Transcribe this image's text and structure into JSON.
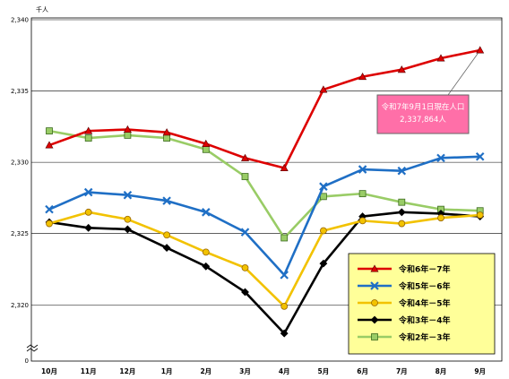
{
  "chart_data": {
    "type": "line",
    "unit_label": "千人",
    "categories": [
      "10月",
      "11月",
      "12月",
      "1月",
      "2月",
      "3月",
      "4月",
      "5月",
      "6月",
      "7月",
      "8月",
      "9月"
    ],
    "ylim": [
      2317,
      2340
    ],
    "y_ticks": [
      2320,
      2325,
      2330,
      2335,
      2340
    ],
    "y_tick_labels": [
      "2,320",
      "2,325",
      "2,330",
      "2,335",
      "2,340"
    ],
    "y_zero_label": "0",
    "grid": true,
    "legend_position": "bottom-right",
    "legend_bg": "#ffff99",
    "series": [
      {
        "name": "令和6年－7年",
        "color": "#dd0000",
        "marker": "triangle",
        "values": [
          2331.2,
          2332.2,
          2332.3,
          2332.1,
          2331.3,
          2330.3,
          2329.6,
          2335.1,
          2336.0,
          2336.5,
          2337.3,
          2337.864
        ]
      },
      {
        "name": "令和5年－6年",
        "color": "#1f6fc5",
        "marker": "x",
        "values": [
          2326.7,
          2327.9,
          2327.7,
          2327.3,
          2326.5,
          2325.1,
          2322.1,
          2328.3,
          2329.5,
          2329.4,
          2330.3,
          2330.4
        ]
      },
      {
        "name": "令和4年－5年",
        "color": "#f2c200",
        "marker": "circle",
        "values": [
          2325.7,
          2326.5,
          2326.0,
          2324.9,
          2323.7,
          2322.6,
          2319.9,
          2325.2,
          2325.9,
          2325.7,
          2326.1,
          2326.3
        ]
      },
      {
        "name": "令和3年－4年",
        "color": "#000000",
        "marker": "diamond",
        "values": [
          2325.8,
          2325.4,
          2325.3,
          2324.0,
          2322.7,
          2320.9,
          2318.0,
          2322.9,
          2326.2,
          2326.5,
          2326.4,
          2326.2
        ]
      },
      {
        "name": "令和2年－3年",
        "color": "#99cc66",
        "marker": "square",
        "values": [
          2332.2,
          2331.7,
          2331.9,
          2331.7,
          2330.9,
          2329.0,
          2324.7,
          2327.6,
          2327.8,
          2327.2,
          2326.7,
          2326.6
        ]
      }
    ],
    "annotation": {
      "line1": "令和7年9月1日現在人口",
      "line2": "2,337,864人",
      "bg": "#ff6fa8"
    }
  }
}
